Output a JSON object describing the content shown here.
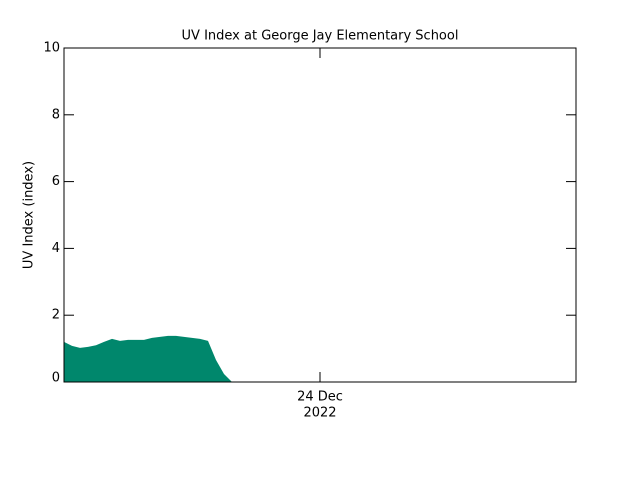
{
  "chart_data": {
    "type": "area",
    "title": "UV Index at George Jay Elementary School",
    "y_label": "UV Index (index)",
    "x_tick_lines": [
      "24 Dec",
      "2022"
    ],
    "categories": [
      null,
      null,
      null,
      null,
      null,
      null,
      null,
      null,
      null,
      null,
      null,
      null,
      null,
      null,
      null,
      null,
      null,
      null,
      null,
      null,
      null,
      null,
      null,
      null,
      null,
      null,
      null,
      null,
      null,
      null,
      null,
      null,
      null,
      null,
      null,
      null,
      null,
      null,
      null,
      null,
      null,
      null,
      null,
      null,
      null,
      null,
      null,
      null,
      null,
      null,
      null,
      null,
      null,
      null,
      null,
      null,
      null,
      null,
      null,
      null,
      null,
      null,
      null,
      null,
      null
    ],
    "values": [
      1.2,
      1.08,
      1.02,
      1.05,
      1.1,
      1.2,
      1.29,
      1.23,
      1.26,
      1.26,
      1.26,
      1.32,
      1.35,
      1.38,
      1.38,
      1.35,
      1.32,
      1.29,
      1.23,
      0.66,
      0.24,
      0,
      null,
      null,
      null,
      null,
      null,
      null,
      null,
      null,
      null,
      null,
      null,
      null,
      null,
      null,
      null,
      null,
      null,
      null,
      null,
      null,
      null,
      null,
      null,
      null,
      null,
      null,
      null,
      null,
      null,
      null,
      null,
      null,
      null,
      null,
      null,
      null,
      null,
      null,
      null,
      null,
      null,
      null,
      null
    ],
    "color": "#00876c",
    "ylim": [
      0,
      10
    ],
    "yticks": [
      0,
      2,
      4,
      6,
      8,
      10
    ]
  }
}
